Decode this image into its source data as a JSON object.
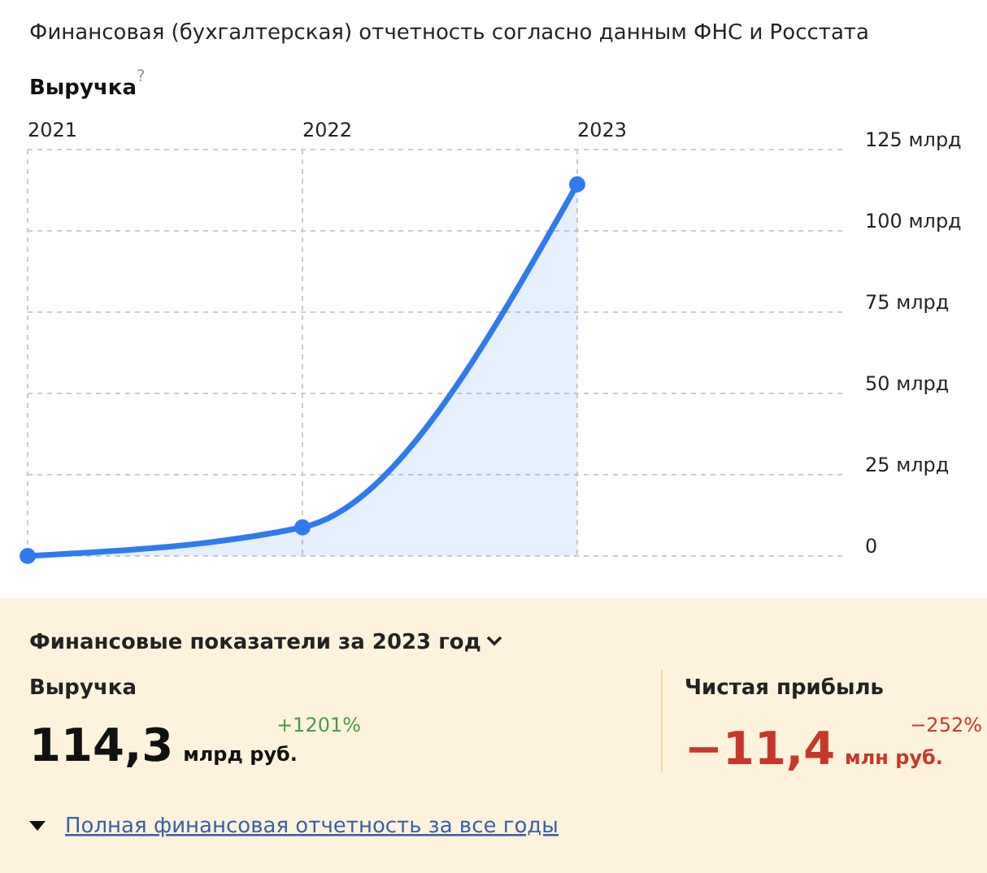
{
  "chart_data": [
    {
      "type": "area",
      "subtitle": "Финансовая (бухгалтерская) отчетность согласно данным ФНС и Росстата",
      "title": "Выручка",
      "categories": [
        "2021",
        "2022",
        "2023"
      ],
      "series": [
        {
          "color": "#2f7bed",
          "values": [
            0,
            8.8,
            114.3
          ]
        }
      ],
      "ylim": [
        0,
        125
      ],
      "yticks": [
        {
          "value": 0,
          "label": "0"
        },
        {
          "value": 25,
          "label": "25 млрд"
        },
        {
          "value": 50,
          "label": "50 млрд"
        },
        {
          "value": 75,
          "label": "75 млрд"
        },
        {
          "value": 100,
          "label": "100 млрд"
        },
        {
          "value": 125,
          "label": "125 млрд"
        }
      ],
      "grid": true,
      "marker": "circle",
      "annotations": [
        "?"
      ]
    },
    {
      "type": "other",
      "title": "Финансовые показатели за 2023 год",
      "annotations": [
        "Выручка",
        "114,3",
        "млрд руб.",
        "+1201%",
        "Чистая прибыль",
        "−11,4",
        "млн руб.",
        "−252%",
        "Полная финансовая отчетность за все годы"
      ]
    }
  ]
}
